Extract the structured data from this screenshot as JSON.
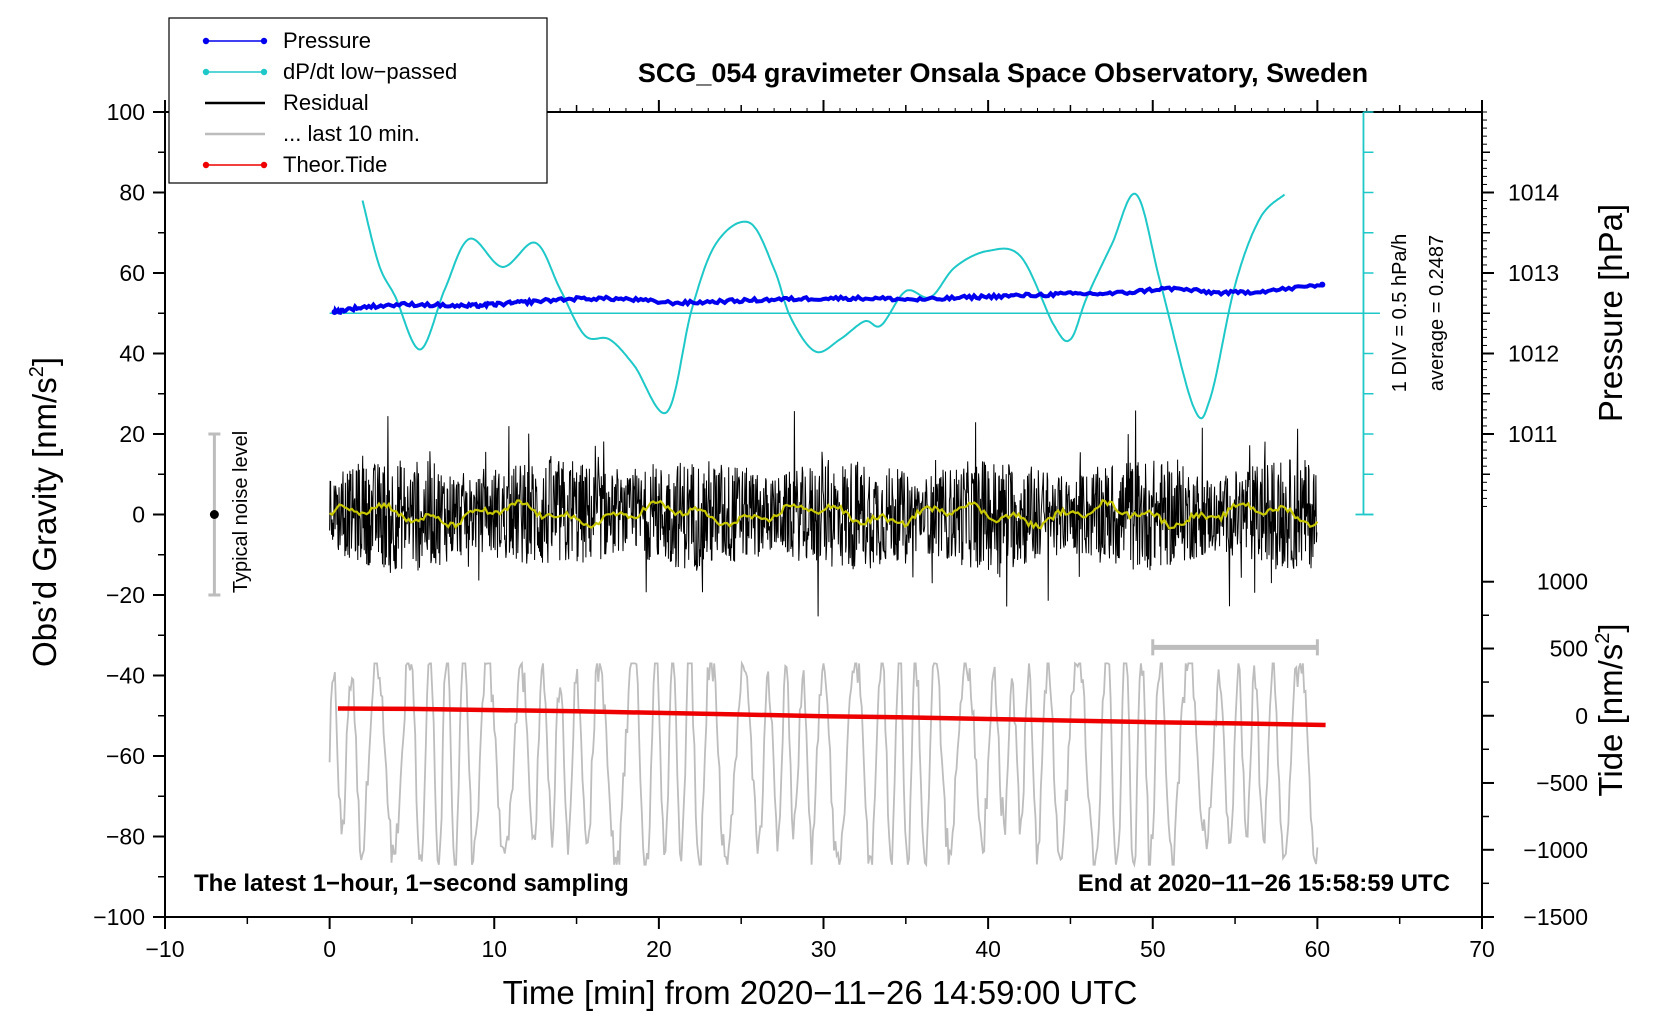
{
  "chart_data": {
    "type": "line",
    "title": "SCG_054 gravimeter Onsala Space Observatory, Sweden",
    "xlabel": "Time [min] from 2020−11−26 14:59:00 UTC",
    "ylabel_left": "Obs’d Gravity [nm/s²]",
    "ylabel_left_main": "Obs’d Gravity [nm/s",
    "ylabel_left_sup": "2",
    "ylabel_left_end": "]",
    "ylabel_right_top": "Pressure [hPa]",
    "ylabel_right_bottom": "Tide [nm/s²]",
    "ylabel_right_bottom_main": "Tide [nm/s",
    "ylabel_right_bottom_sup": "2",
    "ylabel_right_bottom_end": "]",
    "xlim": [
      -10,
      70
    ],
    "ylim_left": [
      -100,
      100
    ],
    "x_ticks": [
      -10,
      0,
      10,
      20,
      30,
      40,
      50,
      60,
      70
    ],
    "x_tick_labels": [
      "−10",
      "0",
      "10",
      "20",
      "30",
      "40",
      "50",
      "60",
      "70"
    ],
    "y_ticks_left": [
      100,
      80,
      60,
      40,
      20,
      0,
      -20,
      -40,
      -60,
      -80,
      -100
    ],
    "y_tick_labels_left": [
      "100",
      "80",
      "60",
      "40",
      "20",
      "0",
      "−20",
      "−40",
      "−60",
      "−80",
      "−100"
    ],
    "pressure_axis": {
      "ticks": [
        1014,
        1013,
        1012,
        1011
      ],
      "tick_labels": [
        "1014",
        "1013",
        "1012",
        "1011"
      ],
      "gravity_equivalent": [
        80,
        60,
        40,
        20
      ],
      "note_lines": [
        "1 DIV = 0.5 hPa/h",
        "average = 0.2487"
      ],
      "ddt_div_hpa_per_h": 0.5,
      "ddt_average": 0.2487
    },
    "tide_axis": {
      "ticks": [
        1000,
        500,
        0,
        -500,
        -1000,
        -1500
      ],
      "tick_labels": [
        "1000",
        "500",
        "0",
        "−500",
        "−1000",
        "−1500"
      ],
      "gravity_equivalent": [
        -16.7,
        -33.3,
        -50,
        -66.7,
        -83.3,
        -100
      ]
    },
    "notes": {
      "bottom_left": "The latest 1−hour, 1−second sampling",
      "bottom_right": "End at 2020−11−26 15:58:59 UTC",
      "noise_label": "Typical noise level",
      "noise_range": [
        -20,
        20
      ]
    },
    "legend": [
      {
        "label": "Pressure",
        "color": "#0000ee",
        "style": "line-dot"
      },
      {
        "label": "dP/dt low−passed",
        "color": "#1ec8c8",
        "style": "line-dot"
      },
      {
        "label": "Residual",
        "color": "#000000",
        "style": "line"
      },
      {
        "label": "... last 10 min.",
        "color": "#bdbdbd",
        "style": "line"
      },
      {
        "label": "Theor.Tide",
        "color": "#ee0000",
        "style": "line-dot"
      }
    ],
    "series": [
      {
        "name": "Pressure",
        "color": "#0000ee",
        "x": [
          0.3,
          2,
          5,
          8,
          10,
          12,
          15,
          18,
          21,
          24,
          27,
          30,
          33,
          36,
          39,
          42,
          45,
          48,
          51,
          54,
          57,
          60.3
        ],
        "y": [
          50.3,
          51.5,
          52.2,
          51.8,
          52.2,
          52.8,
          53.6,
          53.5,
          52.6,
          53.0,
          53.4,
          53.7,
          53.7,
          53.4,
          54.0,
          54.4,
          54.8,
          55.0,
          56.1,
          55.1,
          55.6,
          57.1
        ]
      },
      {
        "name": "dP/dt low−passed",
        "color": "#1ec8c8",
        "x": [
          2,
          3,
          4,
          5.5,
          7,
          8.5,
          10.5,
          12.5,
          14,
          15.5,
          17,
          18.5,
          20.5,
          22,
          23.5,
          25.5,
          27,
          28,
          29.5,
          31,
          32.5,
          33.5,
          35,
          36.5,
          38,
          40,
          42,
          44,
          45,
          46,
          47.5,
          49,
          50.5,
          52.5,
          53.5,
          55,
          56.5,
          58
        ],
        "y": [
          78,
          62,
          54,
          41,
          56,
          68.5,
          61.5,
          67.5,
          56,
          44.5,
          43.5,
          37,
          25.5,
          51,
          67.5,
          72.5,
          61,
          49,
          40.5,
          43.5,
          48,
          47,
          55.5,
          54,
          61.5,
          65.5,
          64,
          47,
          43.5,
          54,
          67,
          79.5,
          57,
          26.5,
          29,
          57,
          73.5,
          79.5
        ]
      },
      {
        "name": "Residual",
        "color": "#000000",
        "x_range": [
          0,
          60
        ],
        "band": [
          -28,
          31
        ]
      },
      {
        "name": "Theor.Tide",
        "color": "#ee0000",
        "x": [
          0.5,
          5,
          10,
          15,
          20,
          25,
          30,
          35,
          40,
          45,
          50,
          55,
          60.5
        ],
        "y": [
          -48.2,
          -48.3,
          -48.6,
          -48.9,
          -49.3,
          -49.7,
          -50.1,
          -50.4,
          -50.8,
          -51.2,
          -51.6,
          -51.9,
          -52.3
        ]
      },
      {
        "name": "... last 10 min.",
        "color": "#bdbdbd",
        "x_range": [
          0,
          60
        ],
        "band": [
          -87,
          -32
        ],
        "window": [
          50,
          60
        ]
      }
    ]
  }
}
